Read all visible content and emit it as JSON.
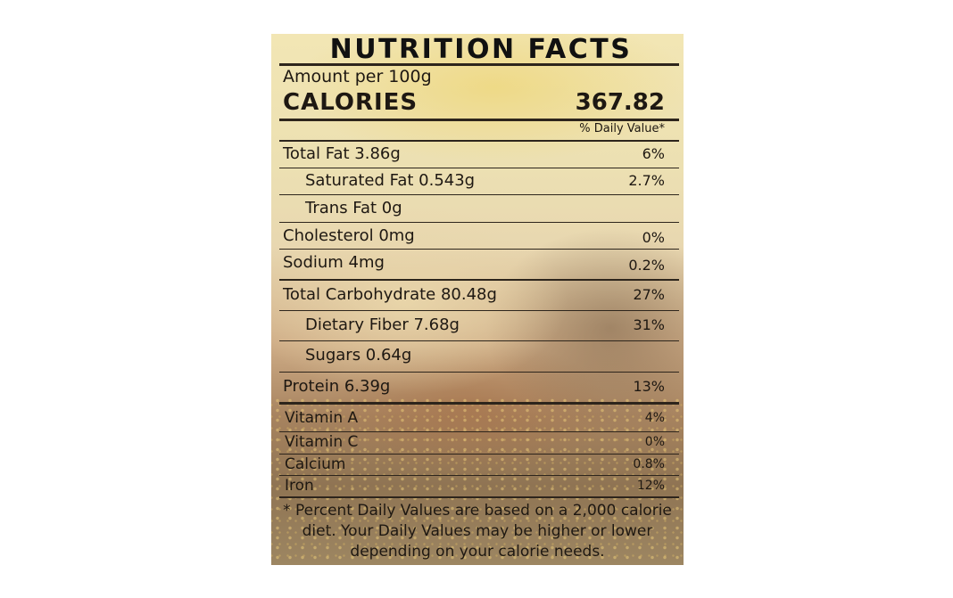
{
  "label": {
    "title": "NUTRITION FACTS",
    "amount_per": "Amount per 100g",
    "calories_label": "CALORIES",
    "calories_value": "367.82",
    "daily_value_header": "% Daily Value*",
    "nutrients": [
      {
        "name": "Total Fat 3.86g",
        "dv": "6%"
      },
      {
        "name": "Saturated Fat 0.543g",
        "dv": "2.7%"
      },
      {
        "name": "Trans Fat 0g",
        "dv": ""
      },
      {
        "name": "Cholesterol 0mg",
        "dv": "0%"
      },
      {
        "name": "Sodium 4mg",
        "dv": "0.2%"
      },
      {
        "name": "Total Carbohydrate 80.48g",
        "dv": "27%"
      },
      {
        "name": "Dietary Fiber 7.68g",
        "dv": "31%"
      },
      {
        "name": "Sugars 0.64g",
        "dv": ""
      },
      {
        "name": "Protein 6.39g",
        "dv": "13%"
      }
    ],
    "vitamins": [
      {
        "name": "Vitamin A",
        "dv": "4%"
      },
      {
        "name": "Vitamin C",
        "dv": "0%"
      },
      {
        "name": "Calcium",
        "dv": "0.8%"
      },
      {
        "name": "Iron",
        "dv": "12%"
      }
    ],
    "footnote": [
      "* Percent Daily Values are based on a 2,000 calorie",
      "diet. Your Daily Values may be higher or lower",
      "depending on your calorie needs."
    ]
  }
}
